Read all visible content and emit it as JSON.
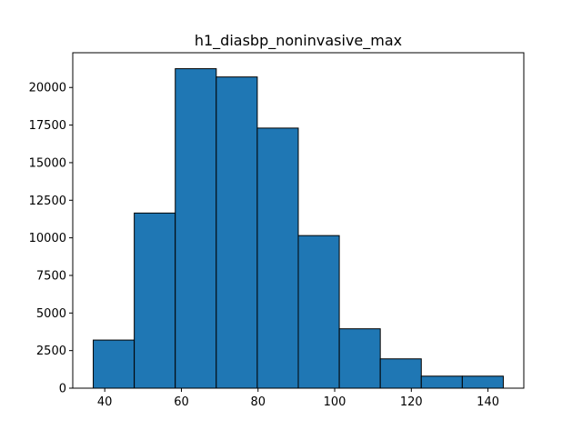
{
  "chart_data": {
    "type": "bar",
    "title": "h1_diasbp_noninvasive_max",
    "xlabel": "",
    "ylabel": "",
    "bin_edges": [
      37.0,
      47.7,
      58.4,
      69.1,
      79.8,
      90.5,
      101.2,
      111.9,
      122.6,
      133.3,
      144.0
    ],
    "values": [
      3200,
      11650,
      21250,
      20700,
      17300,
      10150,
      3950,
      1950,
      800,
      800
    ],
    "xlim": [
      31.65,
      149.35
    ],
    "ylim": [
      0,
      22312.5
    ],
    "xticks": [
      40,
      60,
      80,
      100,
      120,
      140
    ],
    "yticks": [
      0,
      2500,
      5000,
      7500,
      10000,
      12500,
      15000,
      17500,
      20000
    ],
    "grid": false,
    "legend": "none",
    "bar_color": "#1f77b4",
    "edge_color": "#000000"
  }
}
